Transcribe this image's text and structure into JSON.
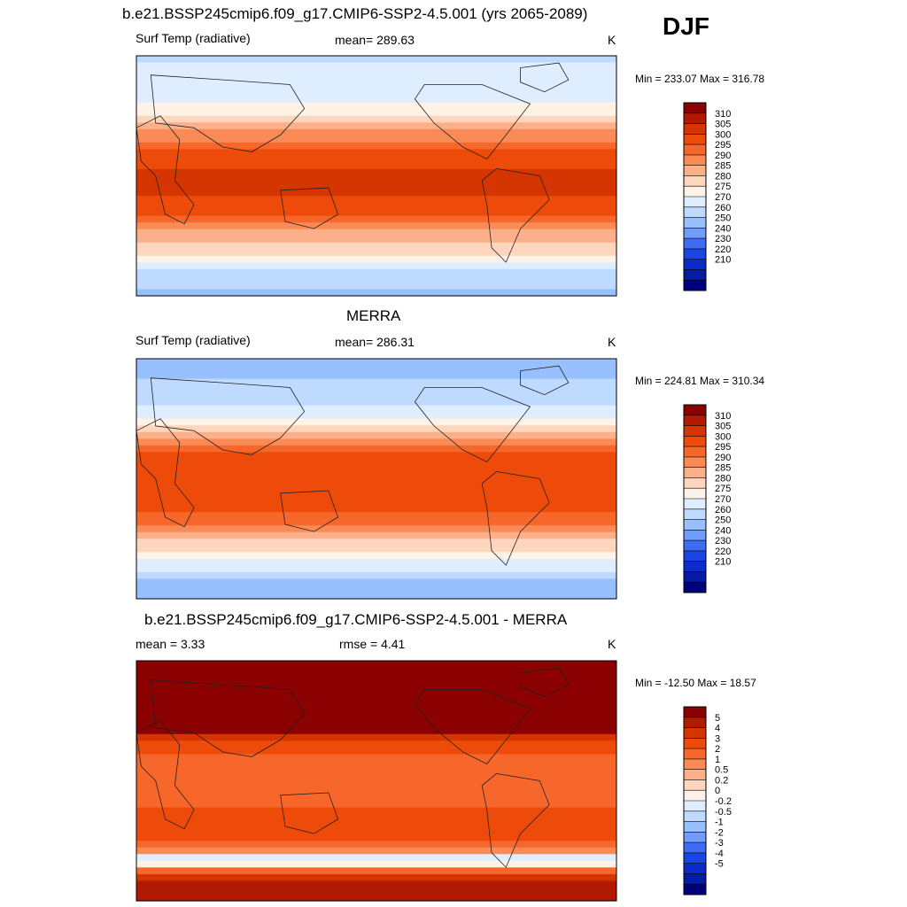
{
  "figure": {
    "season": "DJF",
    "panels": [
      {
        "title": "b.e21.BSSP245cmip6.f09_g17.CMIP6-SSP2-4.5.001 (yrs 2065-2089)",
        "left_label": "Surf Temp (radiative)",
        "center_label": "mean= 289.63",
        "units": "K",
        "minmax": "Min = 233.07 Max = 316.78"
      },
      {
        "title": "MERRA",
        "left_label": "Surf Temp (radiative)",
        "center_label": "mean= 286.31",
        "units": "K",
        "minmax": "Min = 224.81 Max = 310.34"
      },
      {
        "title": "b.e21.BSSP245cmip6.f09_g17.CMIP6-SSP2-4.5.001 - MERRA",
        "left_label": "mean =   3.33",
        "center_label": "rmse =   4.41",
        "units": "K",
        "minmax": "Min = -12.50 Max =  18.57"
      }
    ]
  },
  "chart_data": [
    {
      "type": "heatmap",
      "title": "b.e21.BSSP245cmip6.f09_g17.CMIP6-SSP2-4.5.001 (yrs 2065-2089)",
      "variable": "Surf Temp (radiative)",
      "units": "K",
      "mean": 289.63,
      "min": 233.07,
      "max": 316.78,
      "colorbar_levels": [
        310,
        305,
        300,
        295,
        290,
        285,
        280,
        275,
        270,
        260,
        250,
        240,
        230,
        220,
        210
      ],
      "colorbar_colors": [
        "#8b0000",
        "#b21a00",
        "#d53500",
        "#ee4b0a",
        "#f7672b",
        "#fb8b56",
        "#fcb08a",
        "#fdd6bd",
        "#fff2e6",
        "#dfeeff",
        "#bfdaff",
        "#98c0ff",
        "#6f9cff",
        "#3e6cf4",
        "#1a45e6",
        "#0b2ccb",
        "#041ca3",
        "#00007f"
      ],
      "zonal_profile": {
        "lat": [
          90,
          60,
          45,
          30,
          15,
          0,
          -15,
          -30,
          -45,
          -60,
          -75,
          -90
        ],
        "value": [
          258,
          266,
          276,
          288,
          298,
          301,
          300,
          294,
          283,
          274,
          256,
          246
        ]
      }
    },
    {
      "type": "heatmap",
      "title": "MERRA",
      "variable": "Surf Temp (radiative)",
      "units": "K",
      "mean": 286.31,
      "min": 224.81,
      "max": 310.34,
      "colorbar_levels": [
        310,
        305,
        300,
        295,
        290,
        285,
        280,
        275,
        270,
        260,
        250,
        240,
        230,
        220,
        210
      ],
      "colorbar_colors": [
        "#8b0000",
        "#b21a00",
        "#d53500",
        "#ee4b0a",
        "#f7672b",
        "#fb8b56",
        "#fcb08a",
        "#fdd6bd",
        "#fff2e6",
        "#dfeeff",
        "#bfdaff",
        "#98c0ff",
        "#6f9cff",
        "#3e6cf4",
        "#1a45e6",
        "#0b2ccb",
        "#041ca3",
        "#00007f"
      ],
      "zonal_profile": {
        "lat": [
          90,
          60,
          45,
          30,
          15,
          0,
          -15,
          -30,
          -45,
          -60,
          -75,
          -90
        ],
        "value": [
          246,
          255,
          267,
          285,
          297,
          300,
          299,
          292,
          280,
          271,
          250,
          240
        ]
      }
    },
    {
      "type": "heatmap",
      "title": "b.e21.BSSP245cmip6.f09_g17.CMIP6-SSP2-4.5.001 - MERRA",
      "units": "K",
      "mean": 3.33,
      "rmse": 4.41,
      "min": -12.5,
      "max": 18.57,
      "colorbar_levels": [
        "5",
        "4",
        "3",
        "2",
        "1",
        "0.5",
        "0.2",
        "0",
        "-0.2",
        "-0.5",
        "-1",
        "-2",
        "-3",
        "-4",
        "-5"
      ],
      "colorbar_colors": [
        "#8b0000",
        "#b21a00",
        "#d53500",
        "#ee4b0a",
        "#f7672b",
        "#fb8b56",
        "#fcb08a",
        "#fdd6bd",
        "#fff2e6",
        "#dfeeff",
        "#bfdaff",
        "#98c0ff",
        "#6f9cff",
        "#3e6cf4",
        "#1a45e6",
        "#0b2ccb",
        "#041ca3",
        "#00007f"
      ],
      "zonal_profile": {
        "lat": [
          90,
          60,
          45,
          30,
          15,
          0,
          -15,
          -30,
          -45,
          -60,
          -75,
          -90
        ],
        "value": [
          12,
          9,
          7,
          3,
          1.5,
          1,
          1.5,
          2.5,
          2,
          -1,
          4,
          5
        ]
      }
    }
  ]
}
